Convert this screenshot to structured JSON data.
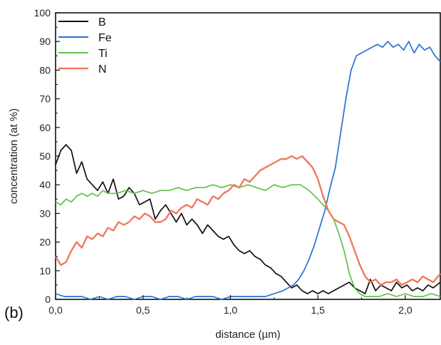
{
  "panel_label": "(b)",
  "chart_data": {
    "type": "line",
    "title": "",
    "xlabel": "distance (µm)",
    "ylabel": "concentration (at %)",
    "xlim": [
      0.0,
      2.2
    ],
    "ylim": [
      0,
      100
    ],
    "x_ticks": [
      0.0,
      0.5,
      1.0,
      1.5,
      2.0
    ],
    "x_tick_labels": [
      "0,0",
      "0,5",
      "1,0",
      "1,5",
      "2,0"
    ],
    "y_ticks": [
      0,
      10,
      20,
      30,
      40,
      50,
      60,
      70,
      80,
      90,
      100
    ],
    "y_tick_labels": [
      "0",
      "10",
      "20",
      "30",
      "40",
      "50",
      "60",
      "70",
      "80",
      "90",
      "100"
    ],
    "grid": false,
    "legend_position": "top-left",
    "series": [
      {
        "name": "B",
        "color": "#111111",
        "x": [
          0.0,
          0.03,
          0.06,
          0.09,
          0.12,
          0.15,
          0.18,
          0.21,
          0.24,
          0.27,
          0.3,
          0.33,
          0.36,
          0.39,
          0.42,
          0.45,
          0.48,
          0.51,
          0.54,
          0.57,
          0.6,
          0.63,
          0.66,
          0.69,
          0.72,
          0.75,
          0.78,
          0.81,
          0.84,
          0.87,
          0.9,
          0.93,
          0.96,
          0.99,
          1.02,
          1.05,
          1.08,
          1.11,
          1.14,
          1.17,
          1.2,
          1.23,
          1.26,
          1.29,
          1.32,
          1.35,
          1.38,
          1.41,
          1.44,
          1.47,
          1.5,
          1.53,
          1.56,
          1.59,
          1.62,
          1.65,
          1.68,
          1.71,
          1.74,
          1.77,
          1.8,
          1.83,
          1.86,
          1.89,
          1.92,
          1.95,
          1.98,
          2.01,
          2.04,
          2.07,
          2.1,
          2.13,
          2.16,
          2.2
        ],
        "y": [
          47,
          52,
          54,
          52,
          44,
          48,
          42,
          40,
          38,
          41,
          37,
          42,
          35,
          36,
          39,
          37,
          33,
          34,
          35,
          28,
          31,
          33,
          30,
          27,
          30,
          26,
          28,
          26,
          23,
          26,
          24,
          22,
          21,
          22,
          19,
          17,
          16,
          17,
          15,
          14,
          12,
          11,
          9,
          8,
          6,
          4,
          5,
          3,
          2,
          3,
          2,
          3,
          2,
          3,
          4,
          5,
          6,
          4,
          3,
          2,
          7,
          3,
          5,
          4,
          3,
          6,
          4,
          5,
          3,
          4,
          3,
          5,
          4,
          6
        ]
      },
      {
        "name": "Fe",
        "color": "#2b6fd6",
        "x": [
          0.0,
          0.05,
          0.1,
          0.15,
          0.2,
          0.25,
          0.3,
          0.35,
          0.4,
          0.45,
          0.5,
          0.55,
          0.6,
          0.65,
          0.7,
          0.75,
          0.8,
          0.85,
          0.9,
          0.95,
          1.0,
          1.05,
          1.1,
          1.15,
          1.2,
          1.25,
          1.3,
          1.33,
          1.36,
          1.39,
          1.42,
          1.45,
          1.48,
          1.51,
          1.54,
          1.57,
          1.6,
          1.63,
          1.66,
          1.69,
          1.72,
          1.75,
          1.78,
          1.81,
          1.84,
          1.87,
          1.9,
          1.93,
          1.96,
          1.99,
          2.02,
          2.05,
          2.08,
          2.11,
          2.14,
          2.17,
          2.2
        ],
        "y": [
          2,
          1,
          1,
          1,
          0,
          1,
          0,
          1,
          1,
          0,
          1,
          1,
          0,
          1,
          1,
          0,
          1,
          1,
          1,
          0,
          1,
          1,
          1,
          1,
          1,
          2,
          3,
          4,
          5,
          7,
          10,
          14,
          19,
          25,
          31,
          39,
          46,
          58,
          70,
          80,
          85,
          86,
          87,
          88,
          89,
          88,
          90,
          88,
          89,
          87,
          90,
          86,
          89,
          87,
          88,
          85,
          83
        ]
      },
      {
        "name": "Ti",
        "color": "#5fc04a",
        "x": [
          0.0,
          0.03,
          0.06,
          0.09,
          0.12,
          0.15,
          0.18,
          0.21,
          0.24,
          0.27,
          0.3,
          0.35,
          0.4,
          0.45,
          0.5,
          0.55,
          0.6,
          0.65,
          0.7,
          0.75,
          0.8,
          0.85,
          0.9,
          0.95,
          1.0,
          1.05,
          1.1,
          1.15,
          1.2,
          1.25,
          1.3,
          1.35,
          1.4,
          1.45,
          1.5,
          1.53,
          1.56,
          1.59,
          1.62,
          1.65,
          1.68,
          1.71,
          1.74,
          1.77,
          1.8,
          1.85,
          1.9,
          1.95,
          2.0,
          2.05,
          2.1,
          2.15,
          2.2
        ],
        "y": [
          34,
          33,
          35,
          34,
          36,
          37,
          36,
          37,
          36,
          38,
          37,
          37,
          38,
          37,
          38,
          37,
          38,
          38,
          39,
          38,
          39,
          39,
          40,
          39,
          40,
          39,
          40,
          39,
          38,
          40,
          39,
          40,
          40,
          38,
          35,
          33,
          31,
          28,
          23,
          17,
          9,
          4,
          2,
          1,
          1,
          1,
          2,
          1,
          2,
          1,
          1,
          2,
          1
        ]
      },
      {
        "name": "N",
        "color": "#f07a5f",
        "x": [
          0.0,
          0.03,
          0.06,
          0.09,
          0.12,
          0.15,
          0.18,
          0.21,
          0.24,
          0.27,
          0.3,
          0.33,
          0.36,
          0.39,
          0.42,
          0.45,
          0.48,
          0.51,
          0.54,
          0.57,
          0.6,
          0.63,
          0.66,
          0.69,
          0.72,
          0.75,
          0.78,
          0.81,
          0.84,
          0.87,
          0.9,
          0.93,
          0.96,
          0.99,
          1.02,
          1.05,
          1.08,
          1.11,
          1.14,
          1.17,
          1.2,
          1.23,
          1.26,
          1.29,
          1.32,
          1.35,
          1.38,
          1.41,
          1.44,
          1.47,
          1.5,
          1.53,
          1.56,
          1.59,
          1.62,
          1.65,
          1.68,
          1.71,
          1.74,
          1.77,
          1.8,
          1.83,
          1.86,
          1.89,
          1.92,
          1.95,
          1.98,
          2.01,
          2.04,
          2.07,
          2.1,
          2.13,
          2.16,
          2.2
        ],
        "y": [
          15,
          12,
          13,
          17,
          20,
          18,
          22,
          21,
          23,
          22,
          25,
          24,
          27,
          26,
          27,
          29,
          28,
          30,
          29,
          27,
          27,
          28,
          31,
          30,
          32,
          33,
          32,
          35,
          34,
          33,
          36,
          35,
          37,
          38,
          40,
          39,
          42,
          41,
          43,
          45,
          46,
          47,
          48,
          49,
          49,
          50,
          49,
          50,
          48,
          46,
          42,
          36,
          31,
          28,
          27,
          26,
          22,
          17,
          12,
          8,
          6,
          7,
          5,
          6,
          6,
          7,
          5,
          6,
          7,
          6,
          8,
          7,
          6,
          9
        ]
      }
    ]
  }
}
